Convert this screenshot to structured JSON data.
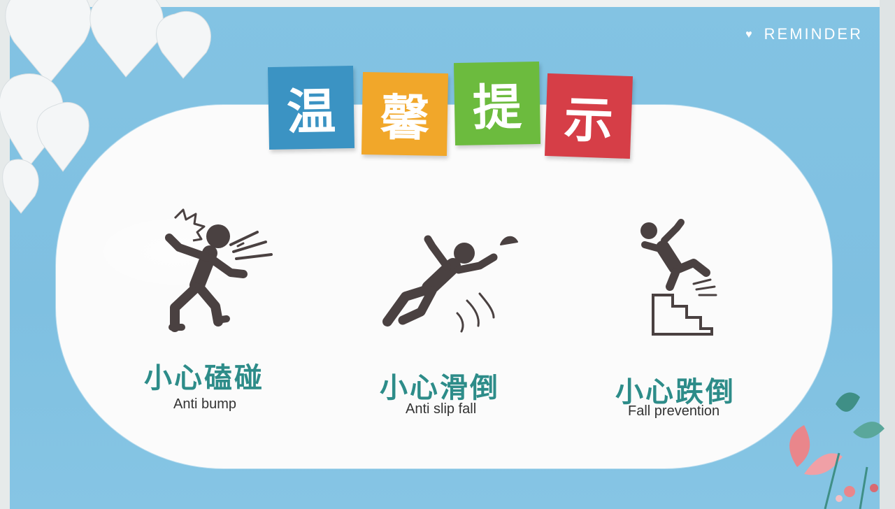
{
  "reminder": {
    "label": "REMINDER",
    "icon": "heart-icon"
  },
  "title": {
    "chars": [
      "温",
      "馨",
      "提",
      "示"
    ]
  },
  "colors": {
    "tile1": "#3b93c3",
    "tile2": "#f1a72a",
    "tile3": "#6cbb3e",
    "tile4": "#d63e47",
    "accent_text": "#2d8c89",
    "background": "#7fc0e1"
  },
  "items": [
    {
      "cn": "小心磕碰",
      "en": "Anti bump",
      "icon": "bump-warning-icon"
    },
    {
      "cn": "小心滑倒",
      "en": "Anti slip fall",
      "icon": "slip-warning-icon"
    },
    {
      "cn": "小心跌倒",
      "en": "Fall prevention",
      "icon": "stairs-fall-icon"
    }
  ]
}
